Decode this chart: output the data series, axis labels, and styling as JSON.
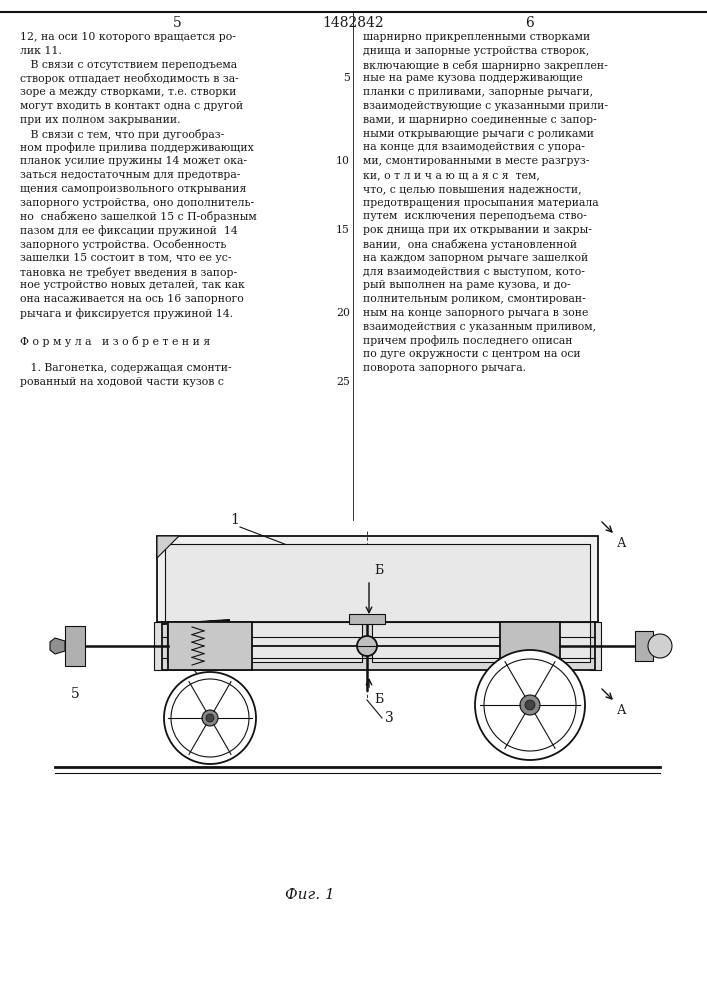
{
  "bg_color": "#ffffff",
  "page_num_left": "5",
  "page_num_center": "1482842",
  "page_num_right": "6",
  "left_col_lines": [
    "12, на оси 10 которого вращается ро-",
    "лик 11.",
    "   В связи с отсутствием переподъема",
    "створок отпадает необходимость в за-",
    "зоре а между створками, т.е. створки",
    "могут входить в контакт одна с другой",
    "при их полном закрывании.",
    "   В связи с тем, что при дугообраз-",
    "ном профиле прилива поддерживающих",
    "планок усилие пружины 14 может ока-",
    "заться недостаточным для предотвра-",
    "щения самопроизвольного открывания",
    "запорного устройства, оно дополнитель-",
    "но  снабжено зашелкой 15 с П-образным",
    "пазом для ее фиксации пружиной  14",
    "запорного устройства. Особенность",
    "зашелки 15 состоит в том, что ее ус-",
    "тановка не требует введения в запор-",
    "ное устройство новых деталей, так как",
    "она насаживается на ось 16 запорного",
    "рычага и фиксируется пружиной 14.",
    "",
    "Ф о р м у л а   и з о б р е т е н и я",
    "",
    "   1. Вагонетка, содержащая смонти-",
    "рованный на ходовой части кузов с"
  ],
  "right_col_lines": [
    "шарнирно прикрепленными створками",
    "днища и запорные устройства створок,",
    "включающие в себя шарнирно закреплен-",
    "ные на раме кузова поддерживающие",
    "планки с приливами, запорные рычаги,",
    "взаимодействующие с указанными прили-",
    "вами, и шарнирно соединенные с запор-",
    "ными открывающие рычаги с роликами",
    "на конце для взаимодействия с упора-",
    "ми, смонтированными в месте разгруз-",
    "ки, о т л и ч а ю щ а я с я  тем,",
    "что, с целью повышения надежности,",
    "предотвращения просыпания материала",
    "путем  исключения переподъема ство-",
    "рок днища при их открывании и закры-",
    "вании,  она снабжена установленной",
    "на каждом запорном рычаге зашелкой",
    "для взаимодействия с выступом, кото-",
    "рый выполнен на раме кузова, и до-",
    "полнительным роликом, смонтирован-",
    "ным на конце запорного рычага в зоне",
    "взаимодействия с указанным приливом,",
    "причем профиль последнего описан",
    "по дуге окружности с центром на оси",
    "поворота запорного рычага."
  ],
  "fig_caption": "Фиг. 1",
  "text_color": "#1a1a1a",
  "draw_color": "#111111"
}
